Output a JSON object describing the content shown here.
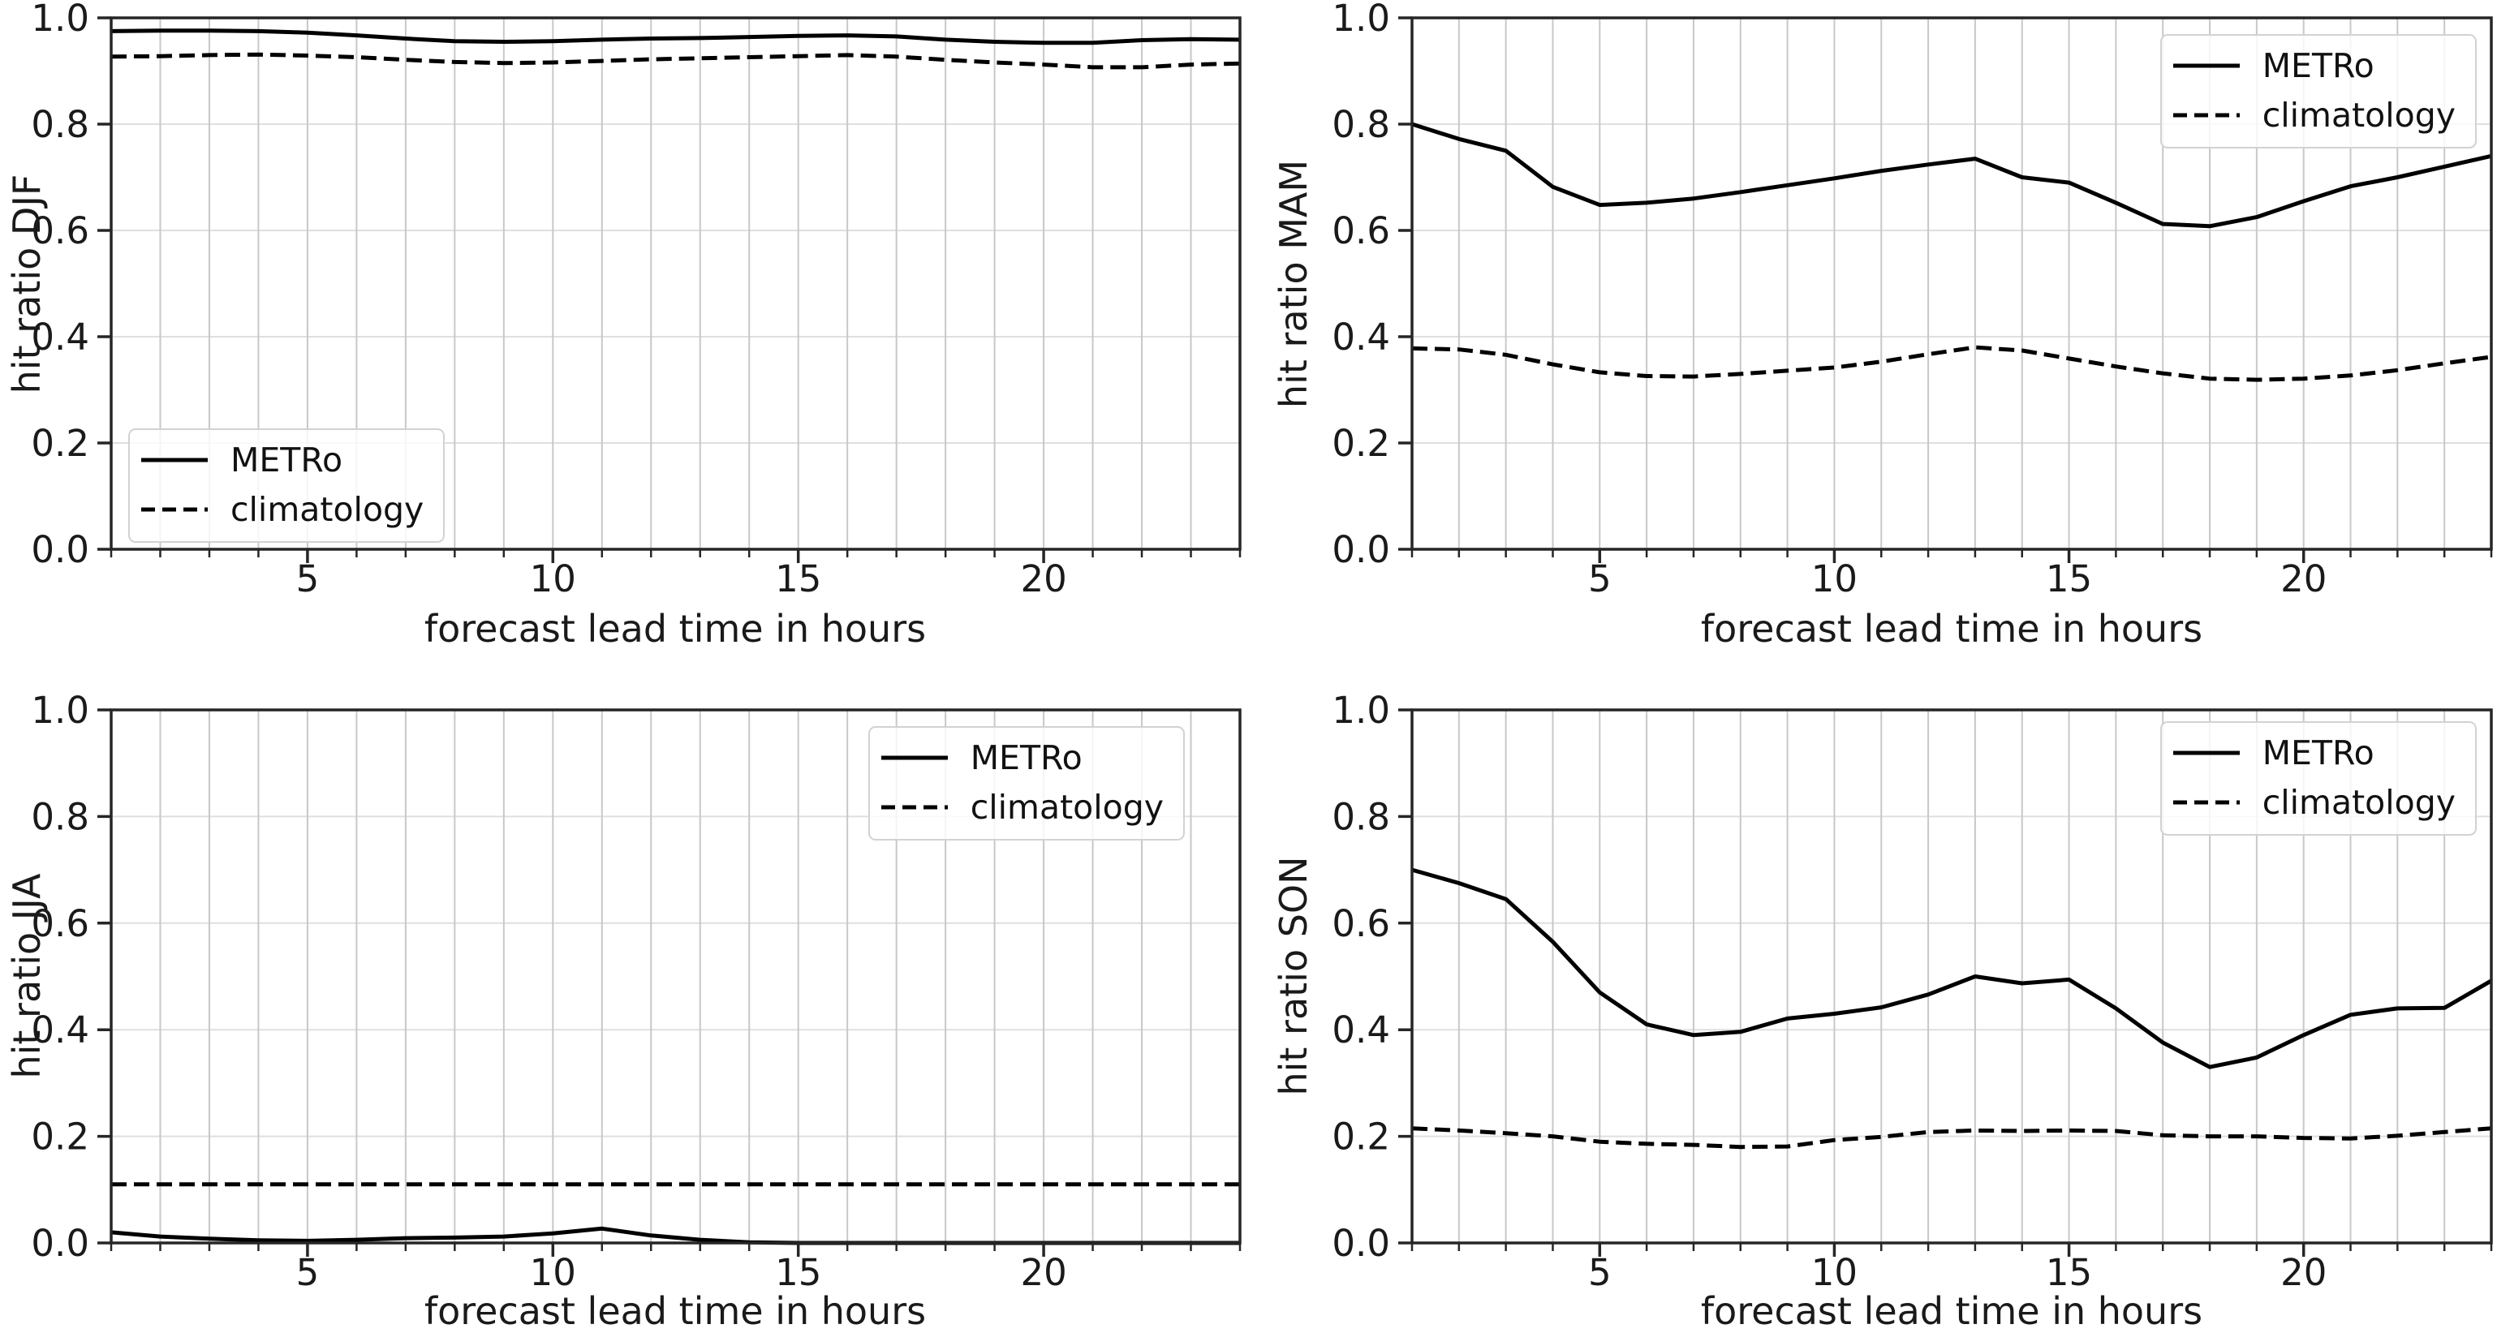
{
  "figure": {
    "layout": "2x2",
    "line_color": "#000000",
    "grid_color_vertical": "#c8c8c8",
    "grid_color_horizontal": "#dfdfdf",
    "spine_color": "#262626"
  },
  "chart_data": [
    {
      "type": "line",
      "title": "",
      "ylabel": "hit ratio DJF",
      "xlabel": "forecast lead time in hours",
      "xlim": [
        1,
        24
      ],
      "ylim": [
        0,
        1
      ],
      "xticks": [
        5,
        10,
        15,
        20
      ],
      "yticks": [
        0,
        0.2,
        0.4,
        0.6,
        0.8,
        1.0
      ],
      "grid": true,
      "legend_position": "lower left",
      "x": [
        1,
        2,
        3,
        4,
        5,
        6,
        7,
        8,
        9,
        10,
        11,
        12,
        13,
        14,
        15,
        16,
        17,
        18,
        19,
        20,
        21,
        22,
        23,
        24
      ],
      "series": [
        {
          "name": "METRo",
          "style": "solid",
          "color": "#000000",
          "values": [
            0.975,
            0.976,
            0.976,
            0.975,
            0.972,
            0.967,
            0.961,
            0.956,
            0.955,
            0.956,
            0.959,
            0.961,
            0.962,
            0.964,
            0.966,
            0.967,
            0.965,
            0.959,
            0.955,
            0.953,
            0.953,
            0.958,
            0.96,
            0.959
          ]
        },
        {
          "name": "climatology",
          "style": "dashed",
          "color": "#000000",
          "values": [
            0.927,
            0.928,
            0.93,
            0.931,
            0.929,
            0.926,
            0.921,
            0.917,
            0.915,
            0.916,
            0.919,
            0.922,
            0.924,
            0.926,
            0.928,
            0.93,
            0.927,
            0.921,
            0.916,
            0.912,
            0.907,
            0.907,
            0.912,
            0.914
          ]
        }
      ]
    },
    {
      "type": "line",
      "title": "",
      "ylabel": "hit ratio MAM",
      "xlabel": "forecast lead time in hours",
      "xlim": [
        1,
        24
      ],
      "ylim": [
        0,
        1
      ],
      "xticks": [
        5,
        10,
        15,
        20
      ],
      "yticks": [
        0,
        0.2,
        0.4,
        0.6,
        0.8,
        1.0
      ],
      "grid": true,
      "legend_position": "upper right",
      "x": [
        1,
        2,
        3,
        4,
        5,
        6,
        7,
        8,
        9,
        10,
        11,
        12,
        13,
        14,
        15,
        16,
        17,
        18,
        19,
        20,
        21,
        22,
        23,
        24
      ],
      "series": [
        {
          "name": "METRo",
          "style": "solid",
          "color": "#000000",
          "values": [
            0.8,
            0.772,
            0.75,
            0.682,
            0.648,
            0.652,
            0.66,
            0.672,
            0.685,
            0.698,
            0.712,
            0.724,
            0.735,
            0.7,
            0.69,
            0.652,
            0.612,
            0.608,
            0.625,
            0.655,
            0.683,
            0.7,
            0.72,
            0.74
          ]
        },
        {
          "name": "climatology",
          "style": "dashed",
          "color": "#000000",
          "values": [
            0.378,
            0.376,
            0.366,
            0.348,
            0.333,
            0.326,
            0.325,
            0.33,
            0.336,
            0.342,
            0.353,
            0.367,
            0.38,
            0.374,
            0.359,
            0.344,
            0.331,
            0.321,
            0.319,
            0.321,
            0.327,
            0.337,
            0.35,
            0.362
          ]
        }
      ]
    },
    {
      "type": "line",
      "title": "",
      "ylabel": "hit ratio JJA",
      "xlabel": "forecast lead time in hours",
      "xlim": [
        1,
        24
      ],
      "ylim": [
        0,
        1
      ],
      "xticks": [
        5,
        10,
        15,
        20
      ],
      "yticks": [
        0,
        0.2,
        0.4,
        0.6,
        0.8,
        1.0
      ],
      "grid": true,
      "legend_position": "upper right",
      "x": [
        1,
        2,
        3,
        4,
        5,
        6,
        7,
        8,
        9,
        10,
        11,
        12,
        13,
        14,
        15,
        16,
        17,
        18,
        19,
        20,
        21,
        22,
        23,
        24
      ],
      "series": [
        {
          "name": "METRo",
          "style": "solid",
          "color": "#000000",
          "values": [
            0.02,
            0.012,
            0.008,
            0.005,
            0.004,
            0.006,
            0.009,
            0.01,
            0.012,
            0.018,
            0.027,
            0.014,
            0.006,
            0.001,
            0.0,
            0.0,
            0.0,
            0.0,
            0.0,
            0.0,
            0.0,
            0.0,
            0.0,
            0.0
          ]
        },
        {
          "name": "climatology",
          "style": "dashed",
          "color": "#000000",
          "values": [
            0.11,
            0.11,
            0.11,
            0.11,
            0.11,
            0.11,
            0.11,
            0.11,
            0.11,
            0.11,
            0.11,
            0.11,
            0.11,
            0.11,
            0.11,
            0.11,
            0.11,
            0.11,
            0.11,
            0.11,
            0.11,
            0.11,
            0.11,
            0.11
          ]
        }
      ]
    },
    {
      "type": "line",
      "title": "",
      "ylabel": "hit ratio SON",
      "xlabel": "forecast lead time in hours",
      "xlim": [
        1,
        24
      ],
      "ylim": [
        0,
        1
      ],
      "xticks": [
        5,
        10,
        15,
        20
      ],
      "yticks": [
        0,
        0.2,
        0.4,
        0.6,
        0.8,
        1.0
      ],
      "grid": true,
      "legend_position": "upper right",
      "x": [
        1,
        2,
        3,
        4,
        5,
        6,
        7,
        8,
        9,
        10,
        11,
        12,
        13,
        14,
        15,
        16,
        17,
        18,
        19,
        20,
        21,
        22,
        23,
        24
      ],
      "series": [
        {
          "name": "METRo",
          "style": "solid",
          "color": "#000000",
          "values": [
            0.7,
            0.675,
            0.645,
            0.565,
            0.47,
            0.41,
            0.39,
            0.396,
            0.421,
            0.43,
            0.442,
            0.466,
            0.5,
            0.487,
            0.494,
            0.44,
            0.376,
            0.33,
            0.348,
            0.39,
            0.428,
            0.44,
            0.441,
            0.492
          ]
        },
        {
          "name": "climatology",
          "style": "dashed",
          "color": "#000000",
          "values": [
            0.215,
            0.211,
            0.206,
            0.2,
            0.19,
            0.186,
            0.184,
            0.18,
            0.181,
            0.193,
            0.199,
            0.208,
            0.211,
            0.21,
            0.211,
            0.21,
            0.202,
            0.2,
            0.2,
            0.197,
            0.196,
            0.201,
            0.208,
            0.215
          ]
        }
      ]
    }
  ]
}
